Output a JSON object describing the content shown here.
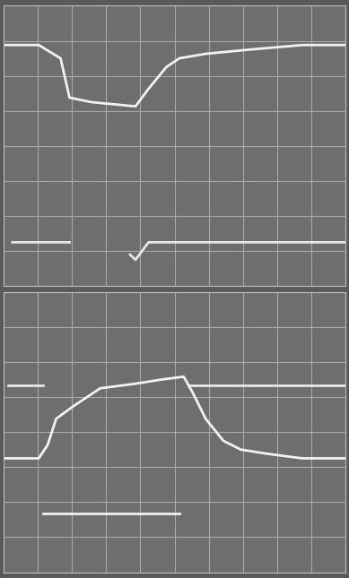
{
  "chart_data": [
    {
      "type": "line",
      "xlim": [
        0,
        10
      ],
      "ylim": [
        0,
        8
      ],
      "xticks": [
        0,
        1,
        2,
        3,
        4,
        5,
        6,
        7,
        8,
        9,
        10
      ],
      "yticks": [
        0,
        1,
        2,
        3,
        4,
        5,
        6,
        7,
        8
      ],
      "grid": true,
      "tick_labels": false,
      "series": [
        {
          "color": "#f2f2f2",
          "x": [
            0,
            1.03,
            1.67,
            1.93,
            2.57,
            3.86,
            4.24,
            4.76,
            5.14,
            5.91,
            7.2,
            8.74,
            10
          ],
          "values": [
            6.88,
            6.88,
            6.5,
            5.38,
            5.25,
            5.13,
            5.63,
            6.25,
            6.5,
            6.63,
            6.75,
            6.88,
            6.88
          ]
        },
        {
          "color": "#e6e6e6",
          "x": [
            0.26,
            1.93,
            2.0,
            3.7,
            3.86,
            4.24,
            10
          ],
          "values": [
            1.25,
            1.25,
            null,
            0.9,
            0.75,
            1.25,
            1.25
          ]
        }
      ]
    },
    {
      "type": "line",
      "xlim": [
        0,
        10
      ],
      "ylim": [
        0,
        8
      ],
      "xticks": [
        0,
        1,
        2,
        3,
        4,
        5,
        6,
        7,
        8,
        9,
        10
      ],
      "yticks": [
        0,
        1,
        2,
        3,
        4,
        5,
        6,
        7,
        8
      ],
      "grid": true,
      "tick_labels": false,
      "series": [
        {
          "color": "#e6e6e6",
          "x": [
            0.13,
            1.16,
            1.2,
            5.4,
            10
          ],
          "values": [
            5.33,
            5.33,
            null,
            5.33,
            5.33
          ]
        },
        {
          "color": "#f2f2f2",
          "x": [
            0,
            1.03,
            1.29,
            1.54,
            2.06,
            2.83,
            3.86,
            4.63,
            5.27,
            5.53,
            5.91,
            6.43,
            6.94,
            7.71,
            8.74,
            10
          ],
          "values": [
            3.25,
            3.25,
            3.63,
            4.38,
            4.75,
            5.25,
            5.38,
            5.5,
            5.58,
            5.13,
            4.38,
            3.75,
            3.5,
            3.38,
            3.25,
            3.25
          ]
        },
        {
          "color": "#f2f2f2",
          "x": [
            1.16,
            5.14
          ],
          "values": [
            1.68,
            1.68
          ]
        }
      ]
    }
  ]
}
